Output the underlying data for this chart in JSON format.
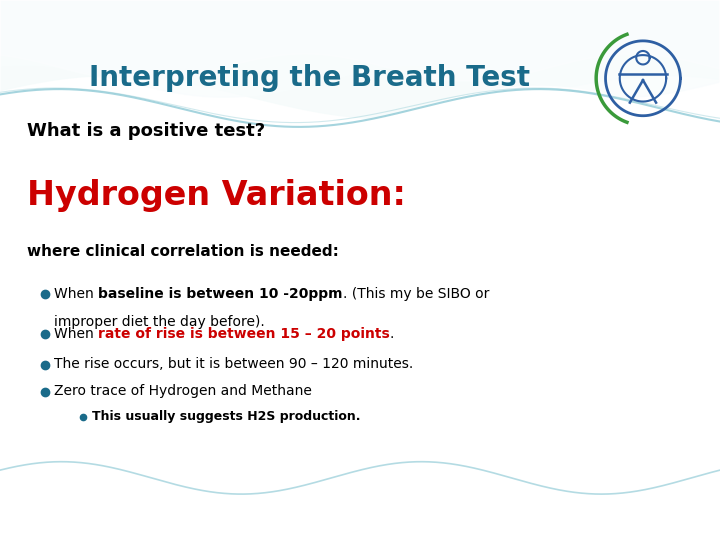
{
  "title": "Interpreting the Breath Test",
  "title_color": "#1a6b8a",
  "title_fontsize": 20,
  "subtitle": "What is a positive test?",
  "subtitle_color": "#000000",
  "subtitle_fontsize": 13,
  "section_title": "Hydrogen Variation:",
  "section_title_color": "#cc0000",
  "section_title_fontsize": 24,
  "section_label": "where clinical correlation is needed:",
  "section_label_color": "#000000",
  "section_label_fontsize": 11,
  "bullet_color": "#1a6b8a",
  "bg_color": "#f5f9fc",
  "wave_top_colors": [
    "#7ec8c8",
    "#5ba8be",
    "#a8d8e8",
    "#c8e8f0"
  ],
  "wave_bot_colors": [
    "#7ec8c8",
    "#5ba8be",
    "#a8d8e8"
  ],
  "logo_color": "#2e5fa3",
  "logo_green": "#3a9a3a"
}
